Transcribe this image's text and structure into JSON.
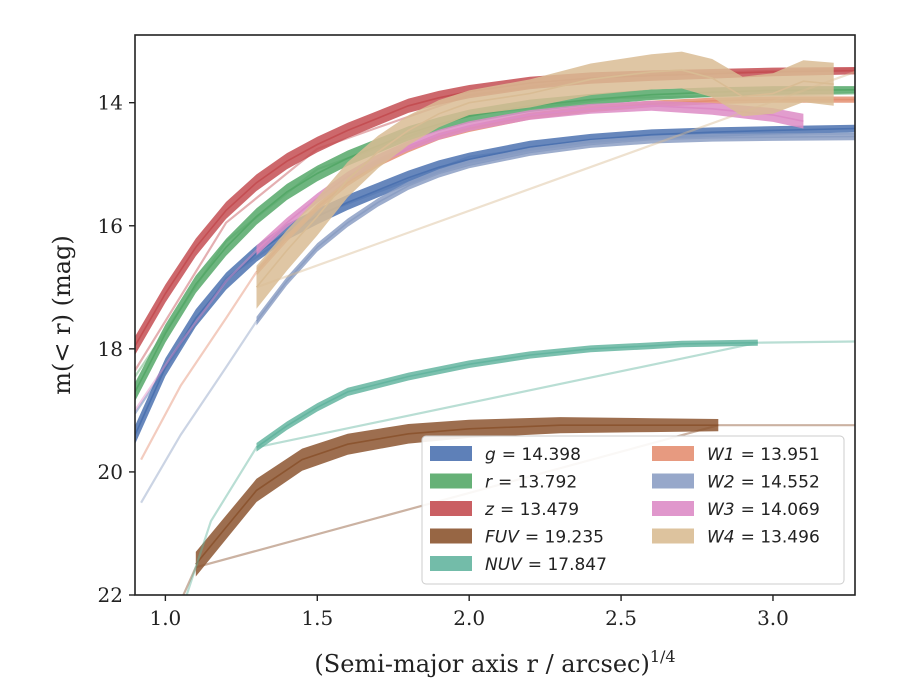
{
  "chart_data": {
    "type": "line",
    "xlabel": "(Semi-major axis r / arcsec)",
    "xlabel_superscript": "1/4",
    "ylabel": "m(< r) (mag)",
    "xlim": [
      0.9,
      3.27
    ],
    "ylim": [
      22,
      12.9
    ],
    "y_inverted": true,
    "grid": false,
    "legend_position": "lower-right",
    "xticks": [
      "1.0",
      "1.5",
      "2.0",
      "2.5",
      "3.0"
    ],
    "xtick_values": [
      1.0,
      1.5,
      2.0,
      2.5,
      3.0
    ],
    "yticks": [
      "14",
      "16",
      "18",
      "20",
      "22"
    ],
    "ytick_values": [
      14,
      16,
      18,
      20,
      22
    ],
    "series": [
      {
        "name": "g = 14.398",
        "legend_var": "g",
        "legend_val": "= 14.398",
        "color": "#4c72b0",
        "data": [
          [
            0.9,
            19.4
          ],
          [
            1.0,
            18.3
          ],
          [
            1.1,
            17.5
          ],
          [
            1.2,
            16.9
          ],
          [
            1.3,
            16.45
          ],
          [
            1.4,
            16.1
          ],
          [
            1.5,
            15.85
          ],
          [
            1.6,
            15.62
          ],
          [
            1.7,
            15.42
          ],
          [
            1.8,
            15.22
          ],
          [
            1.9,
            15.05
          ],
          [
            2.0,
            14.92
          ],
          [
            2.2,
            14.72
          ],
          [
            2.4,
            14.6
          ],
          [
            2.6,
            14.52
          ],
          [
            2.8,
            14.48
          ],
          [
            3.0,
            14.45
          ],
          [
            3.27,
            14.42
          ]
        ],
        "band": [
          [
            0.9,
            0.15
          ],
          [
            3.27,
            0.06
          ]
        ],
        "ghost": [
          [
            0.9,
            19.05
          ],
          [
            1.2,
            16.85
          ],
          [
            1.5,
            15.83
          ],
          [
            2.0,
            14.88
          ],
          [
            2.5,
            14.57
          ],
          [
            3.27,
            14.5
          ]
        ]
      },
      {
        "name": "r = 13.792",
        "legend_var": "r",
        "legend_val": "= 13.792",
        "color": "#55a868",
        "data": [
          [
            0.9,
            18.7
          ],
          [
            1.0,
            17.75
          ],
          [
            1.1,
            16.95
          ],
          [
            1.2,
            16.35
          ],
          [
            1.3,
            15.85
          ],
          [
            1.4,
            15.45
          ],
          [
            1.5,
            15.15
          ],
          [
            1.6,
            14.9
          ],
          [
            1.7,
            14.7
          ],
          [
            1.8,
            14.5
          ],
          [
            1.9,
            14.35
          ],
          [
            2.0,
            14.22
          ],
          [
            2.2,
            14.05
          ],
          [
            2.4,
            13.95
          ],
          [
            2.6,
            13.87
          ],
          [
            2.8,
            13.83
          ],
          [
            3.0,
            13.8
          ],
          [
            3.27,
            13.79
          ]
        ],
        "band": [
          [
            0.9,
            0.15
          ],
          [
            3.27,
            0.06
          ]
        ],
        "ghost": [
          [
            0.9,
            18.45
          ],
          [
            1.2,
            16.25
          ],
          [
            1.5,
            15.08
          ],
          [
            2.0,
            14.2
          ],
          [
            2.5,
            13.92
          ],
          [
            3.27,
            13.85
          ]
        ]
      },
      {
        "name": "z = 13.479",
        "legend_var": "z",
        "legend_val": "= 13.479",
        "color": "#c44e52",
        "data": [
          [
            0.9,
            17.95
          ],
          [
            1.0,
            17.1
          ],
          [
            1.1,
            16.35
          ],
          [
            1.2,
            15.75
          ],
          [
            1.3,
            15.3
          ],
          [
            1.4,
            14.95
          ],
          [
            1.5,
            14.68
          ],
          [
            1.6,
            14.45
          ],
          [
            1.7,
            14.25
          ],
          [
            1.8,
            14.05
          ],
          [
            1.9,
            13.92
          ],
          [
            2.0,
            13.82
          ],
          [
            2.2,
            13.68
          ],
          [
            2.4,
            13.6
          ],
          [
            2.6,
            13.56
          ],
          [
            2.8,
            13.53
          ],
          [
            3.0,
            13.5
          ],
          [
            3.27,
            13.48
          ]
        ],
        "band": [
          [
            0.9,
            0.15
          ],
          [
            3.27,
            0.06
          ]
        ],
        "ghost": [
          [
            0.9,
            18.35
          ],
          [
            1.2,
            15.95
          ],
          [
            1.5,
            14.75
          ],
          [
            2.0,
            13.88
          ],
          [
            2.5,
            13.55
          ],
          [
            3.27,
            13.45
          ]
        ]
      },
      {
        "name": "FUV = 19.235",
        "legend_var": "FUV",
        "legend_val": "= 19.235",
        "color": "#8c5530",
        "data": [
          [
            1.1,
            21.5
          ],
          [
            1.2,
            20.9
          ],
          [
            1.3,
            20.3
          ],
          [
            1.45,
            19.8
          ],
          [
            1.6,
            19.55
          ],
          [
            1.8,
            19.38
          ],
          [
            2.0,
            19.3
          ],
          [
            2.3,
            19.24
          ],
          [
            2.6,
            19.24
          ],
          [
            2.82,
            19.24
          ]
        ],
        "band": [
          [
            1.1,
            0.2
          ],
          [
            2.82,
            0.1
          ]
        ],
        "ghost": [
          [
            0.9,
            23.0
          ],
          [
            1.05,
            22.1
          ],
          [
            1.1,
            21.55
          ],
          [
            2.82,
            19.24
          ],
          [
            3.27,
            19.24
          ]
        ]
      },
      {
        "name": "NUV = 17.847",
        "legend_var": "NUV",
        "legend_val": "= 17.847",
        "color": "#64b5a0",
        "data": [
          [
            1.3,
            19.6
          ],
          [
            1.4,
            19.25
          ],
          [
            1.5,
            18.95
          ],
          [
            1.6,
            18.7
          ],
          [
            1.8,
            18.45
          ],
          [
            2.0,
            18.25
          ],
          [
            2.2,
            18.1
          ],
          [
            2.4,
            18.0
          ],
          [
            2.6,
            17.95
          ],
          [
            2.7,
            17.92
          ],
          [
            2.95,
            17.9
          ]
        ],
        "band": [
          [
            1.3,
            0.07
          ],
          [
            2.95,
            0.05
          ]
        ],
        "ghost": [
          [
            0.9,
            23.0
          ],
          [
            1.05,
            22.3
          ],
          [
            1.15,
            20.8
          ],
          [
            1.25,
            20.0
          ],
          [
            1.3,
            19.6
          ],
          [
            2.95,
            17.9
          ],
          [
            3.27,
            17.88
          ]
        ]
      },
      {
        "name": "W1 = 13.951",
        "legend_var": "W1",
        "legend_val": "= 13.951",
        "color": "#e48f72",
        "data": [
          [
            1.3,
            16.75
          ],
          [
            1.4,
            16.2
          ],
          [
            1.5,
            15.7
          ],
          [
            1.6,
            15.3
          ],
          [
            1.7,
            14.98
          ],
          [
            1.8,
            14.75
          ],
          [
            1.9,
            14.55
          ],
          [
            2.0,
            14.42
          ],
          [
            2.2,
            14.22
          ],
          [
            2.4,
            14.1
          ],
          [
            2.6,
            14.02
          ],
          [
            2.8,
            13.97
          ],
          [
            3.0,
            13.95
          ],
          [
            3.27,
            13.95
          ]
        ],
        "band": [
          [
            1.3,
            0.06
          ],
          [
            3.27,
            0.05
          ]
        ],
        "ghost": [
          [
            0.92,
            19.8
          ],
          [
            1.05,
            18.6
          ],
          [
            1.2,
            17.5
          ],
          [
            1.3,
            16.75
          ]
        ]
      },
      {
        "name": "W2 = 14.552",
        "legend_var": "W2",
        "legend_val": "= 14.552",
        "color": "#8c9fc4",
        "data": [
          [
            1.3,
            17.55
          ],
          [
            1.4,
            16.9
          ],
          [
            1.5,
            16.35
          ],
          [
            1.6,
            15.95
          ],
          [
            1.7,
            15.62
          ],
          [
            1.8,
            15.35
          ],
          [
            1.9,
            15.15
          ],
          [
            2.0,
            15.0
          ],
          [
            2.2,
            14.8
          ],
          [
            2.4,
            14.67
          ],
          [
            2.6,
            14.6
          ],
          [
            2.8,
            14.57
          ],
          [
            3.0,
            14.56
          ],
          [
            3.27,
            14.55
          ]
        ],
        "band": [
          [
            1.3,
            0.07
          ],
          [
            3.27,
            0.06
          ]
        ],
        "ghost": [
          [
            0.92,
            20.5
          ],
          [
            1.05,
            19.4
          ],
          [
            1.2,
            18.3
          ],
          [
            1.3,
            17.55
          ]
        ]
      },
      {
        "name": "W3 = 14.069",
        "legend_var": "W3",
        "legend_val": "= 14.069",
        "color": "#dd8cc6",
        "data": [
          [
            1.3,
            16.4
          ],
          [
            1.4,
            15.95
          ],
          [
            1.5,
            15.55
          ],
          [
            1.6,
            15.2
          ],
          [
            1.7,
            14.92
          ],
          [
            1.8,
            14.7
          ],
          [
            1.9,
            14.52
          ],
          [
            2.0,
            14.38
          ],
          [
            2.2,
            14.2
          ],
          [
            2.4,
            14.1
          ],
          [
            2.6,
            14.05
          ],
          [
            2.8,
            14.1
          ],
          [
            3.0,
            14.2
          ],
          [
            3.1,
            14.3
          ]
        ],
        "band": [
          [
            1.3,
            0.08
          ],
          [
            2.6,
            0.08
          ],
          [
            3.1,
            0.12
          ]
        ],
        "ghost": [
          [
            0.9,
            19.0
          ],
          [
            1.05,
            17.9
          ],
          [
            1.2,
            16.9
          ],
          [
            1.3,
            16.4
          ]
        ]
      },
      {
        "name": "W4 = 13.496",
        "legend_var": "W4",
        "legend_val": "= 13.496",
        "color": "#d9bc94",
        "data": [
          [
            1.3,
            17.0
          ],
          [
            1.4,
            16.4
          ],
          [
            1.5,
            15.85
          ],
          [
            1.6,
            15.25
          ],
          [
            1.7,
            14.8
          ],
          [
            1.8,
            14.45
          ],
          [
            1.9,
            14.18
          ],
          [
            2.0,
            14.0
          ],
          [
            2.2,
            13.85
          ],
          [
            2.4,
            13.62
          ],
          [
            2.6,
            13.5
          ],
          [
            2.7,
            13.47
          ],
          [
            2.8,
            13.6
          ],
          [
            2.9,
            13.9
          ],
          [
            3.0,
            13.85
          ],
          [
            3.1,
            13.65
          ],
          [
            3.2,
            13.7
          ]
        ],
        "band": [
          [
            1.3,
            0.35
          ],
          [
            2.0,
            0.2
          ],
          [
            2.7,
            0.3
          ],
          [
            3.2,
            0.35
          ]
        ],
        "ghost": [
          [
            1.3,
            17.0
          ],
          [
            3.27,
            13.5
          ]
        ]
      }
    ]
  }
}
